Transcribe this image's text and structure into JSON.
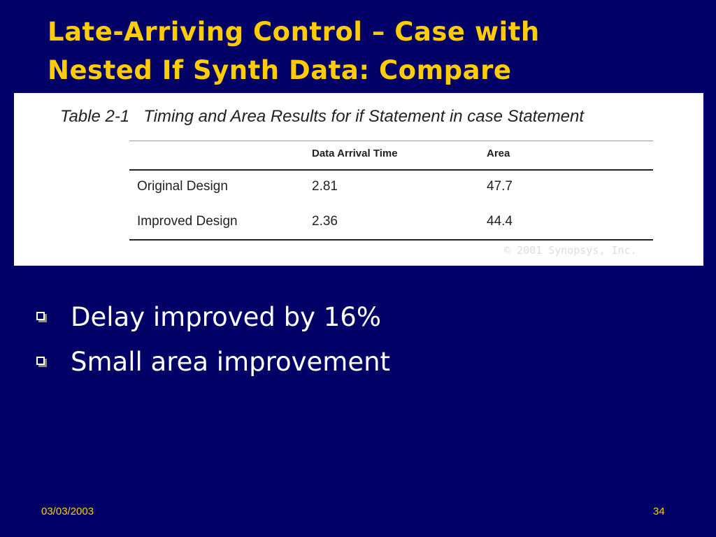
{
  "slide": {
    "title_line1": "Late-Arriving Control – Case with",
    "title_line2": "Nested If Synth Data: Compare"
  },
  "table": {
    "caption_label": "Table 2-1",
    "caption_title": "Timing and Area Results for if Statement in case Statement",
    "headers": [
      "",
      "Data Arrival Time",
      "Area"
    ],
    "rows": [
      [
        "Original Design",
        "2.81",
        "47.7"
      ],
      [
        "Improved Design",
        "2.36",
        "44.4"
      ]
    ],
    "copyright": "© 2001 Synopsys, Inc."
  },
  "bullets": [
    "Delay improved by 16%",
    "Small area improvement"
  ],
  "footer": {
    "date": "03/03/2003",
    "page": "34"
  },
  "colors": {
    "background": "#000066",
    "title": "#ffcc00",
    "body_text": "#ffffff"
  }
}
